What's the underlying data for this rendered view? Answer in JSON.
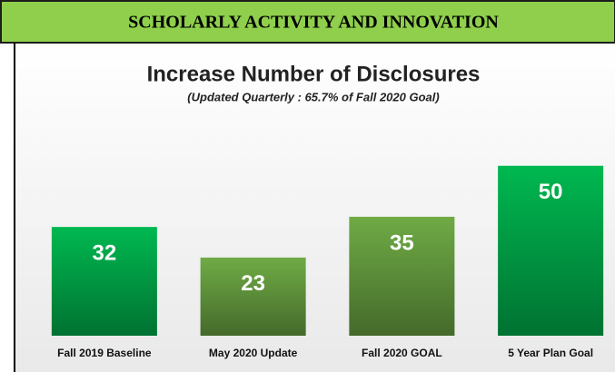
{
  "header": {
    "title": "SCHOLARLY  ACTIVITY AND INNOVATION"
  },
  "chart_data": {
    "type": "bar",
    "title": "Increase Number of Disclosures",
    "subtitle": "(Updated Quarterly : 65.7% of Fall 2020 Goal)",
    "categories": [
      "Fall 2019 Baseline",
      "May 2020 Update",
      "Fall 2020 GOAL",
      "5 Year Plan Goal"
    ],
    "values": [
      32,
      23,
      35,
      50
    ],
    "colors": [
      "#00b850",
      "#6fab45",
      "#6fab45",
      "#00b850"
    ],
    "ylim": [
      0,
      55
    ]
  }
}
